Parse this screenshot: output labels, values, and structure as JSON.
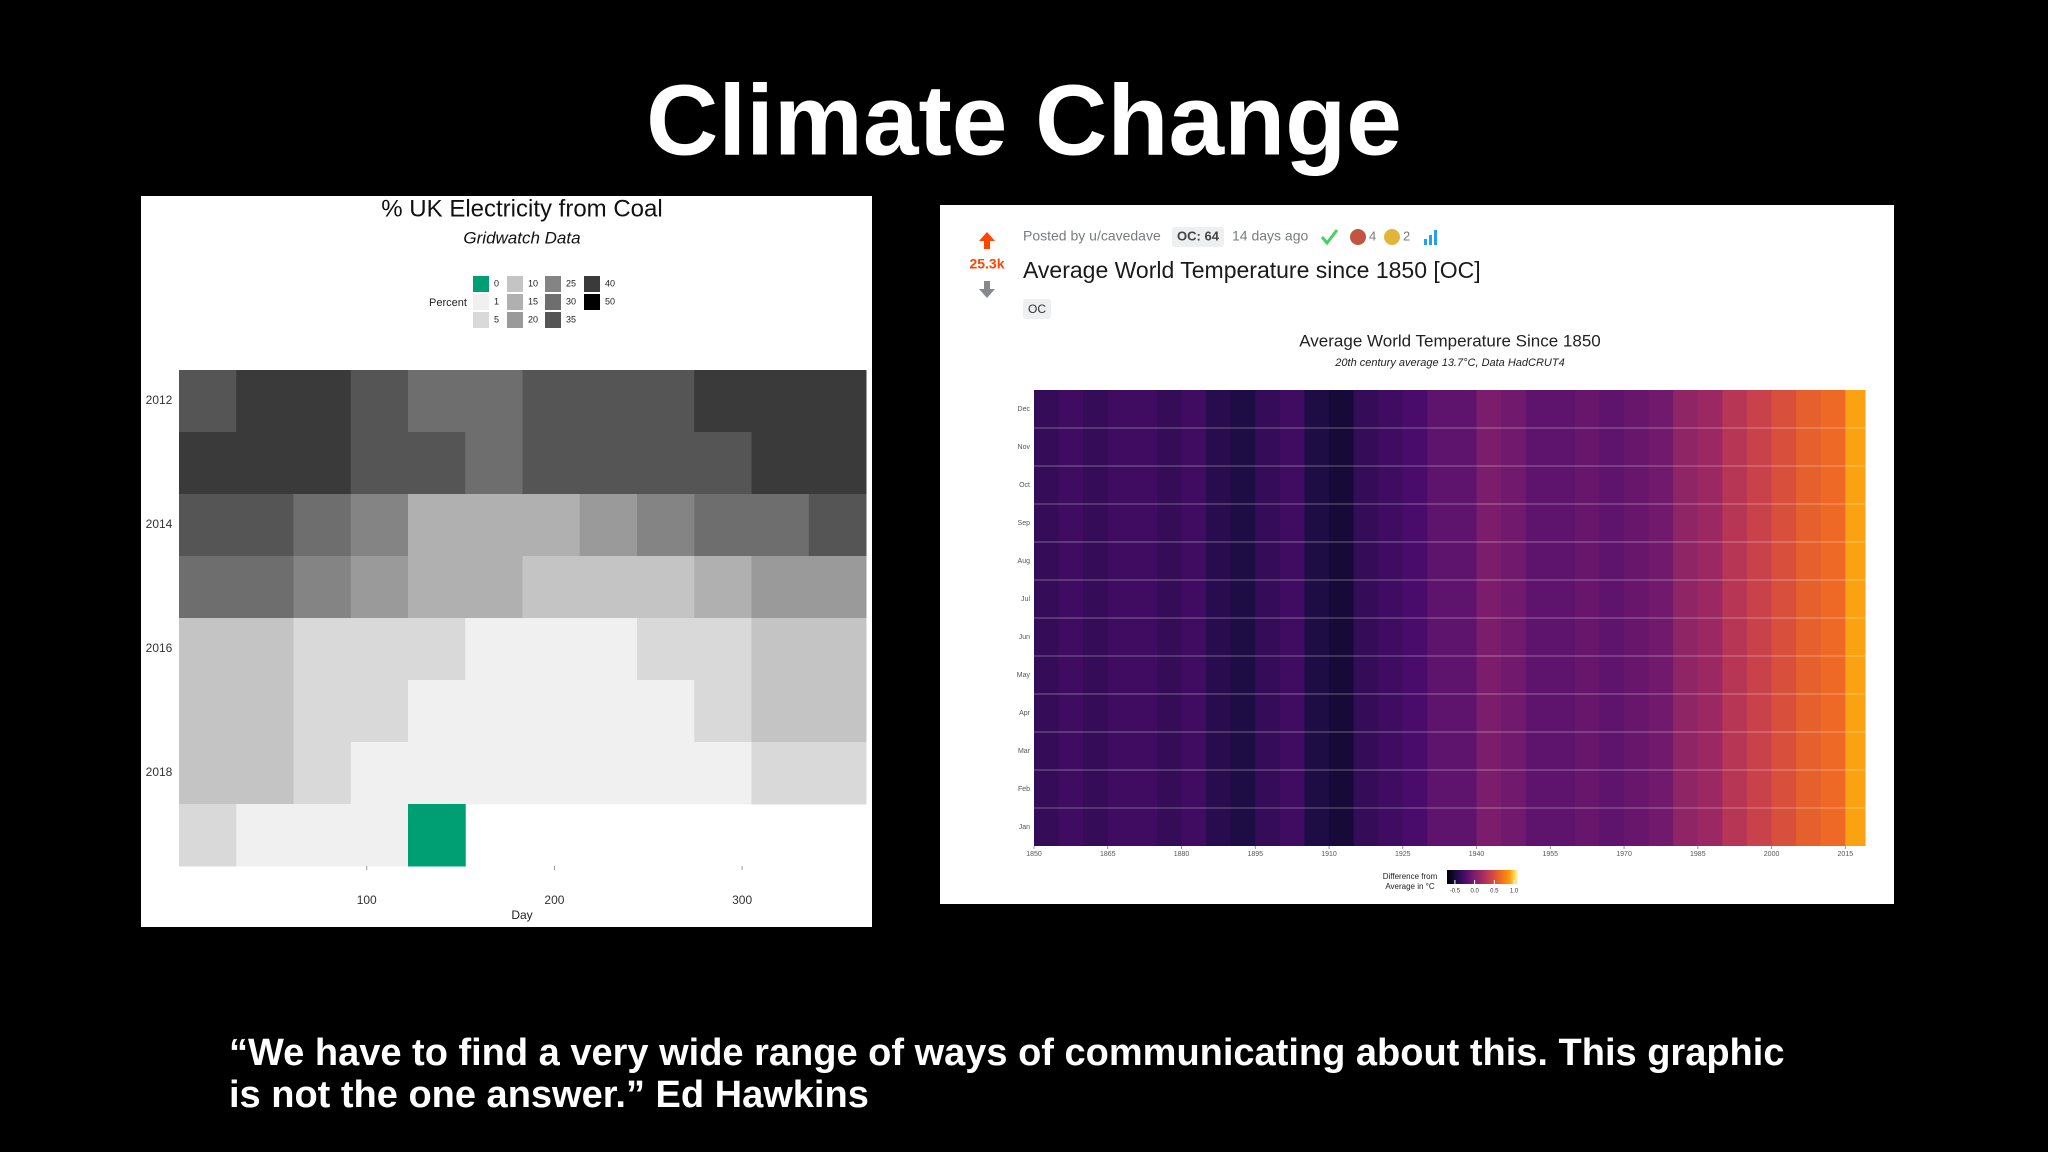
{
  "slide": {
    "title": "Climate Change",
    "quote": [
      "“We have to find a very wide range of ways of communicating about this. This graphic",
      "is not the one answer.” Ed Hawkins"
    ]
  },
  "chart_data": [
    {
      "type": "heatmap",
      "title": "% UK Electricity from Coal",
      "subtitle": "Gridwatch Data",
      "legend_title": "Percent",
      "levels": [
        0,
        1,
        5,
        10,
        15,
        20,
        25,
        30,
        35,
        40,
        50
      ],
      "colors": [
        "#009e73",
        "#f0f0f0",
        "#d9d9d9",
        "#c4c4c4",
        "#b0b0b0",
        "#9a9a9a",
        "#848484",
        "#6e6e6e",
        "#555555",
        "#3a3a3a",
        "#000000"
      ],
      "categories": [
        "2012",
        null,
        "2014",
        null,
        "2016",
        null,
        "2018",
        null
      ],
      "rows": [
        [
          38,
          42,
          40,
          36,
          30,
          32,
          35,
          36,
          38,
          42,
          45,
          45
        ],
        [
          45,
          44,
          42,
          38,
          35,
          33,
          35,
          36,
          35,
          38,
          40,
          42
        ],
        [
          38,
          36,
          30,
          25,
          18,
          15,
          15,
          20,
          28,
          30,
          32,
          36
        ],
        [
          32,
          30,
          26,
          22,
          18,
          15,
          12,
          12,
          14,
          15,
          20,
          24
        ],
        [
          14,
          12,
          8,
          6,
          5,
          4,
          4,
          4,
          5,
          8,
          12,
          14
        ],
        [
          12,
          10,
          6,
          5,
          3,
          2,
          2,
          2,
          4,
          6,
          10,
          12
        ],
        [
          10,
          12,
          8,
          4,
          1,
          1,
          1,
          1,
          2,
          4,
          6,
          8
        ],
        [
          6,
          4,
          2,
          1,
          0,
          null,
          null,
          null,
          null,
          null,
          null,
          null
        ]
      ],
      "x_label": "Day",
      "xlim": [
        0,
        366
      ],
      "xticks": [
        100,
        200,
        300
      ]
    },
    {
      "type": "heatmap",
      "post": {
        "posted_by": "Posted by u/cavedave",
        "badge": "OC: 64",
        "age": "14 days ago",
        "award_counts": [
          "4",
          "2"
        ],
        "score": "25.3k",
        "title": "Average World Temperature since 1850 [OC]",
        "flair": "OC"
      },
      "title": "Average World Temperature Since 1850",
      "subtitle": "20th century average 13.7°C, Data HadCRUT4",
      "categories": [
        "Jan",
        "Feb",
        "Mar",
        "Apr",
        "May",
        "Jun",
        "Jul",
        "Aug",
        "Sep",
        "Oct",
        "Nov",
        "Dec"
      ],
      "x": [
        1850,
        1855,
        1860,
        1865,
        1870,
        1875,
        1880,
        1885,
        1890,
        1895,
        1900,
        1905,
        1910,
        1915,
        1920,
        1925,
        1930,
        1935,
        1940,
        1945,
        1950,
        1955,
        1960,
        1965,
        1970,
        1975,
        1980,
        1985,
        1990,
        1995,
        2000,
        2005,
        2010,
        2015
      ],
      "values": [
        -0.35,
        -0.3,
        -0.35,
        -0.3,
        -0.3,
        -0.35,
        -0.3,
        -0.4,
        -0.45,
        -0.35,
        -0.3,
        -0.45,
        -0.5,
        -0.35,
        -0.3,
        -0.25,
        -0.15,
        -0.15,
        0.0,
        -0.05,
        -0.15,
        -0.15,
        -0.1,
        -0.15,
        -0.1,
        -0.05,
        0.1,
        0.15,
        0.3,
        0.4,
        0.5,
        0.6,
        0.65,
        0.9
      ],
      "xlim": [
        1850,
        2019
      ],
      "xticks": [
        1850,
        1865,
        1880,
        1895,
        1910,
        1925,
        1940,
        1955,
        1970,
        1985,
        2000,
        2015
      ],
      "legend_title": [
        "Difference from",
        "Average in °C"
      ],
      "colorlim": [
        -0.7,
        1.1
      ],
      "colormap": "inferno",
      "colorticks": [
        -0.5,
        {
          "value": 0,
          "label": "0.0"
        },
        0.5,
        {
          "value": 1,
          "label": "1.0"
        }
      ]
    }
  ]
}
